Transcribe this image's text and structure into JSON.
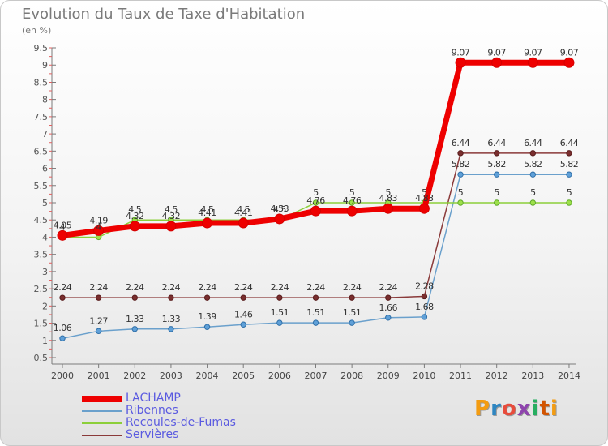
{
  "header": {
    "title": "Evolution du Taux de Taxe d'Habitation",
    "unit": "(en %)"
  },
  "brand": {
    "logo_text": "Proxiti"
  },
  "legend": {
    "items": [
      {
        "label": "LACHAMP",
        "color": "#ee0000"
      },
      {
        "label": "Ribennes",
        "color": "#6aa0cc"
      },
      {
        "label": "Recoules-de-Fumas",
        "color": "#8ccf3a"
      },
      {
        "label": "Servières",
        "color": "#8a3a3a"
      }
    ]
  },
  "chart_data": {
    "type": "line",
    "title": "Evolution du Taux de Taxe d'Habitation",
    "ylabel": "(en %)",
    "xlabel": "",
    "x": [
      "2000",
      "2001",
      "2002",
      "2003",
      "2004",
      "2005",
      "2006",
      "2007",
      "2008",
      "2009",
      "2010",
      "2011",
      "2012",
      "2013",
      "2014"
    ],
    "ylim": [
      0.5,
      9.5
    ],
    "yticks": [
      "0.5",
      "1",
      "1.5",
      "2",
      "2.5",
      "3",
      "3.5",
      "4",
      "4.5",
      "5",
      "5.5",
      "6",
      "6.5",
      "7",
      "7.5",
      "8",
      "8.5",
      "9",
      "9.5"
    ],
    "grid": false,
    "legend_position": "bottom-left",
    "series": [
      {
        "name": "LACHAMP",
        "color": "#ee0000",
        "values": [
          4.05,
          4.19,
          4.32,
          4.32,
          4.41,
          4.41,
          4.53,
          4.76,
          4.76,
          4.83,
          4.83,
          9.07,
          9.07,
          9.07,
          9.07
        ],
        "labels": [
          "4.05",
          "4.19",
          "4.32",
          "4.32",
          "4.41",
          "4.41",
          "4.53",
          "4.76",
          "4.76",
          "4.83",
          "4.83",
          "9.07",
          "9.07",
          "9.07",
          "9.07"
        ]
      },
      {
        "name": "Ribennes",
        "color": "#6aa0cc",
        "values": [
          1.06,
          1.27,
          1.33,
          1.33,
          1.39,
          1.46,
          1.51,
          1.51,
          1.51,
          1.66,
          1.68,
          5.82,
          5.82,
          5.82,
          5.82
        ],
        "labels": [
          "1.06",
          "1.27",
          "1.33",
          "1.33",
          "1.39",
          "1.46",
          "1.51",
          "1.51",
          "1.51",
          "1.66",
          "1.68",
          "5.82",
          "5.82",
          "5.82",
          "5.82"
        ]
      },
      {
        "name": "Recoules-de-Fumas",
        "color": "#8ccf3a",
        "values": [
          4,
          4,
          4.5,
          4.5,
          4.5,
          4.5,
          4.5,
          5,
          5,
          5,
          5,
          5,
          5,
          5,
          5
        ],
        "labels": [
          "4",
          "4",
          "4.5",
          "4.5",
          "4.5",
          "4.5",
          "4.5",
          "5",
          "5",
          "5",
          "5",
          "5",
          "5",
          "5",
          "5"
        ]
      },
      {
        "name": "Servières",
        "color": "#8a3a3a",
        "values": [
          2.24,
          2.24,
          2.24,
          2.24,
          2.24,
          2.24,
          2.24,
          2.24,
          2.24,
          2.24,
          2.28,
          6.44,
          6.44,
          6.44,
          6.44
        ],
        "labels": [
          "2.24",
          "2.24",
          "2.24",
          "2.24",
          "2.24",
          "2.24",
          "2.24",
          "2.24",
          "2.24",
          "2.24",
          "2.28",
          "6.44",
          "6.44",
          "6.44",
          "6.44"
        ]
      }
    ]
  }
}
